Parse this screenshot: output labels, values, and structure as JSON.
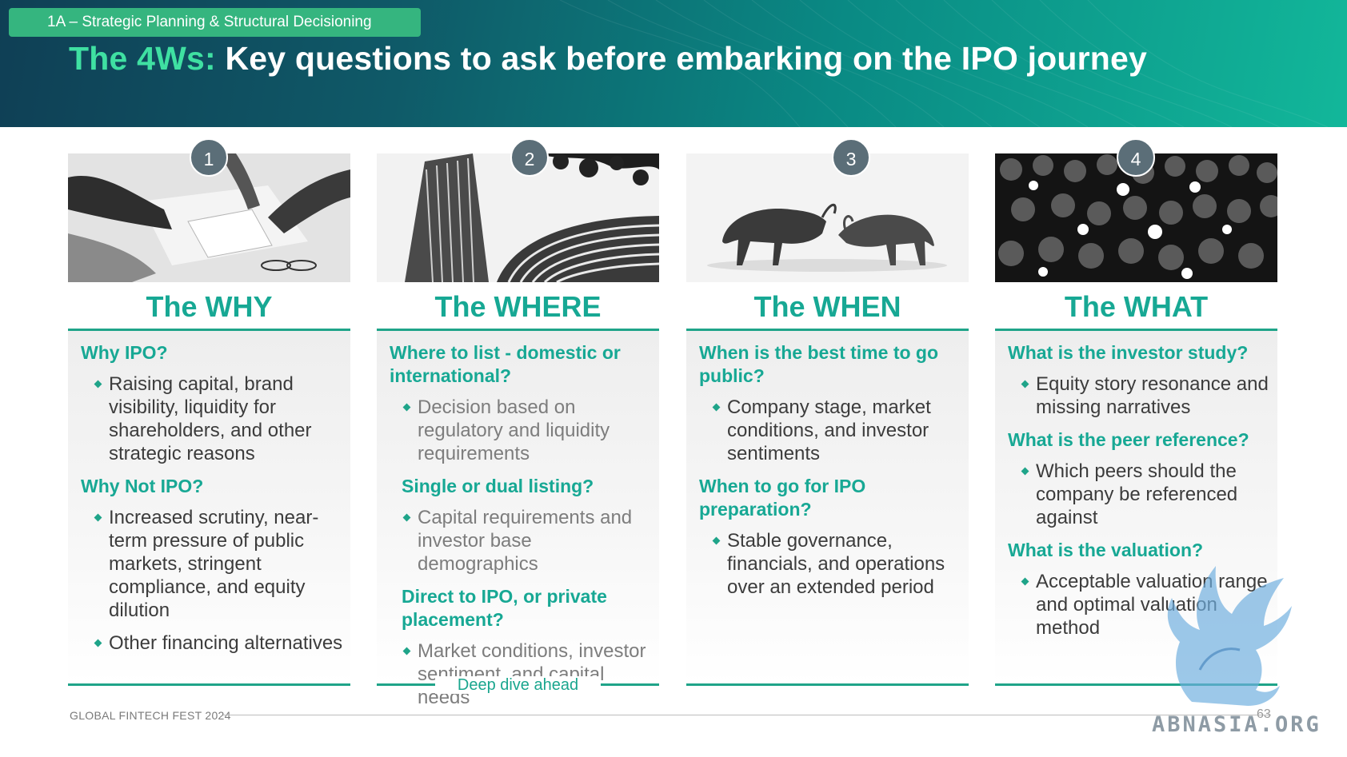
{
  "header": {
    "section_tag": "1A – Strategic Planning & Structural Decisioning",
    "title_accent": "The 4Ws:",
    "title_rest": "Key questions to ask before embarking on the IPO journey"
  },
  "columns": [
    {
      "number": "1",
      "photo_icon": "business-meeting-photo",
      "title": "The WHY",
      "questions": [
        {
          "q": "Why IPO?",
          "bullets": [
            "Raising capital, brand visibility, liquidity for shareholders, and other strategic reasons"
          ]
        },
        {
          "q": "Why Not IPO?",
          "bullets": [
            "Increased scrutiny, near-term pressure of public markets, stringent compliance, and equity dilution",
            "Other financing alternatives"
          ]
        }
      ]
    },
    {
      "number": "2",
      "photo_icon": "stock-exchange-building-photo",
      "title": "The WHERE",
      "questions": [
        {
          "q": "Where to list - domestic or international?",
          "bullets": [
            "Decision based on regulatory and liquidity requirements"
          ]
        },
        {
          "q": "Single or dual listing?",
          "bullets": [
            "Capital requirements and investor base demographics"
          ]
        },
        {
          "q": "Direct to IPO, or private placement?",
          "bullets": [
            "Market conditions, investor sentiment,  and capital needs"
          ]
        }
      ],
      "footer_label": "Deep dive ahead"
    },
    {
      "number": "3",
      "photo_icon": "bull-and-bear-photo",
      "title": "The WHEN",
      "questions": [
        {
          "q": "When is the best time to go public?",
          "bullets": [
            "Company stage, market conditions, and investor sentiments"
          ]
        },
        {
          "q": "When to go for IPO preparation?",
          "bullets": [
            "Stable governance, financials, and operations over an extended period"
          ]
        }
      ]
    },
    {
      "number": "4",
      "photo_icon": "press-photographers-photo",
      "title": "The WHAT",
      "questions": [
        {
          "q": "What is the investor study?",
          "bullets": [
            "Equity story resonance and missing narratives"
          ]
        },
        {
          "q": "What is the peer reference?",
          "bullets": [
            "Which peers should the company be referenced against"
          ]
        },
        {
          "q": "What is the valuation?",
          "bullets": [
            "Acceptable valuation range and optimal valuation method"
          ]
        }
      ]
    }
  ],
  "footer": {
    "event": "GLOBAL FINTECH FEST 2024",
    "page": "63"
  },
  "watermark": {
    "logo_icon": "griffin-logo-icon",
    "text": "ABNASIA.ORG"
  },
  "colors": {
    "accent_green": "#17a894",
    "tag_green": "#35b57f",
    "title_accent": "#3fe0a2",
    "number_badge": "#5b6e78"
  }
}
